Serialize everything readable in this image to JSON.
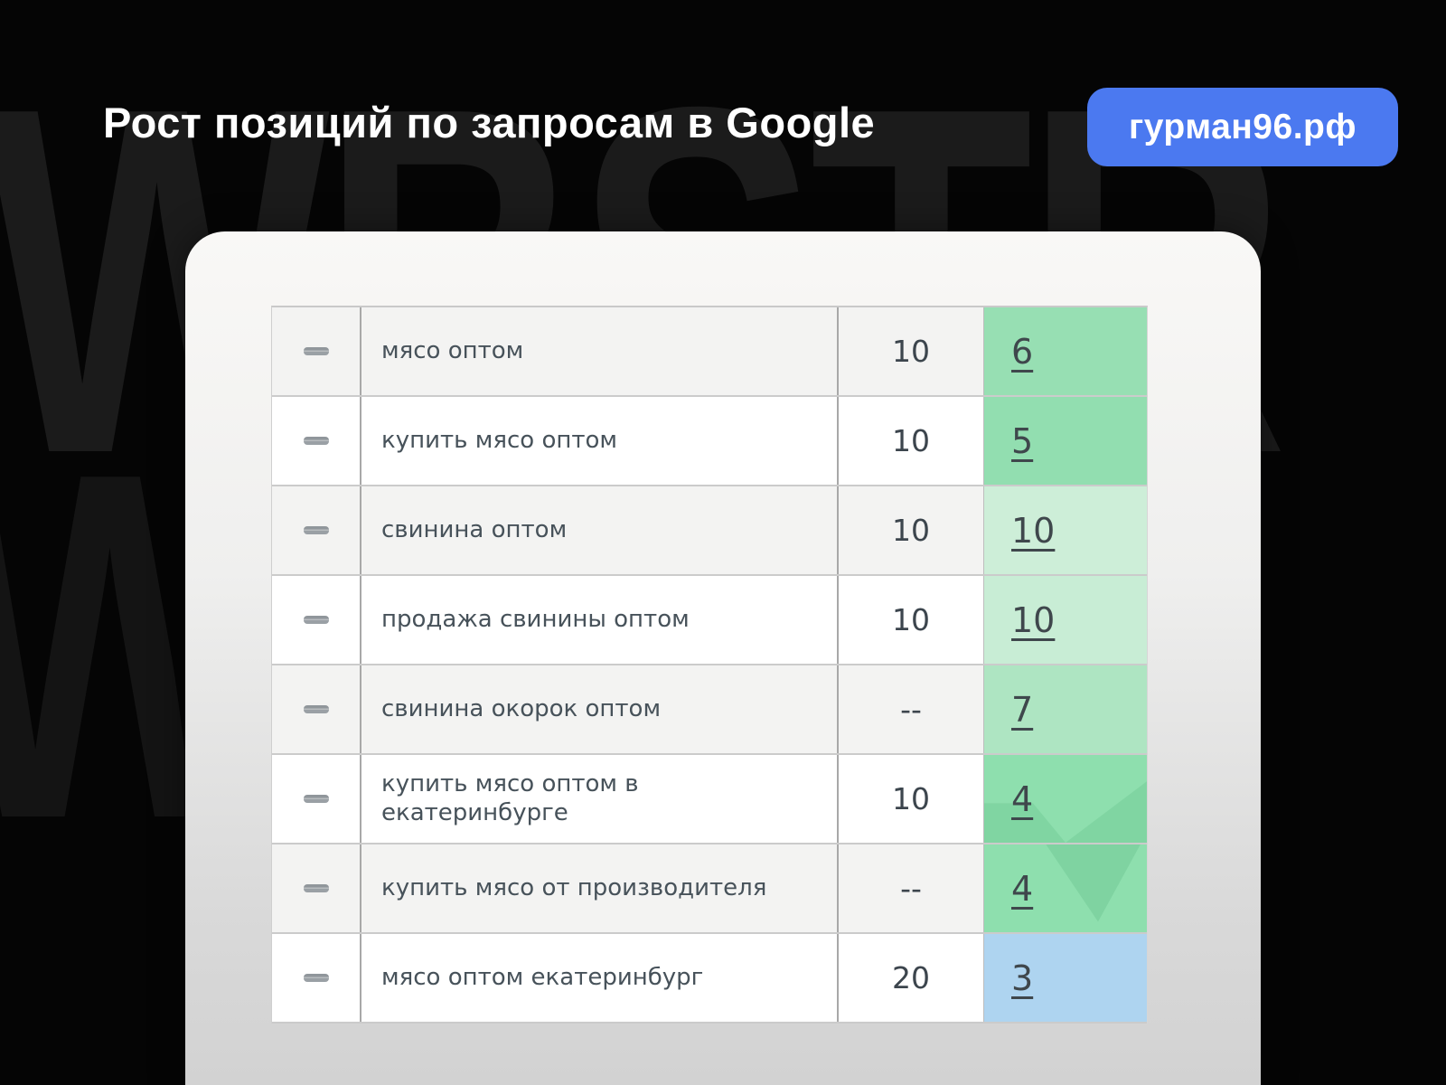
{
  "header": {
    "title": "Рост позиций по запросам в Google",
    "badge": "гурман96.рф",
    "badge_color": "#4b79f0"
  },
  "watermark": {
    "row1": "WBSTR",
    "row2": "WBSTR"
  },
  "table": {
    "row_status_icon": "no-change-dash-icon",
    "columns": [
      "status",
      "query",
      "target_top",
      "position"
    ],
    "rows": [
      {
        "query": "мясо оптом",
        "top": "10",
        "position": "6",
        "change_color": "#97dfb3"
      },
      {
        "query": "купить мясо оптом",
        "top": "10",
        "position": "5",
        "change_color": "#92deb0"
      },
      {
        "query": "свинина оптом",
        "top": "10",
        "position": "10",
        "change_color": "#cdeed8"
      },
      {
        "query": "продажа свинины оптом",
        "top": "10",
        "position": "10",
        "change_color": "#c8edd5"
      },
      {
        "query": "свинина окорок оптом",
        "top": "--",
        "position": "7",
        "change_color": "#aee5c2"
      },
      {
        "query": "купить мясо оптом в\nекатеринбурге",
        "top": "10",
        "position": "4",
        "change_color": "#8edfae"
      },
      {
        "query": "купить мясо от производителя",
        "top": "--",
        "position": "4",
        "change_color": "#8edfae"
      },
      {
        "query": "мясо оптом екатеринбург",
        "top": "20",
        "position": "3",
        "change_color": "#aed4f0"
      }
    ]
  }
}
